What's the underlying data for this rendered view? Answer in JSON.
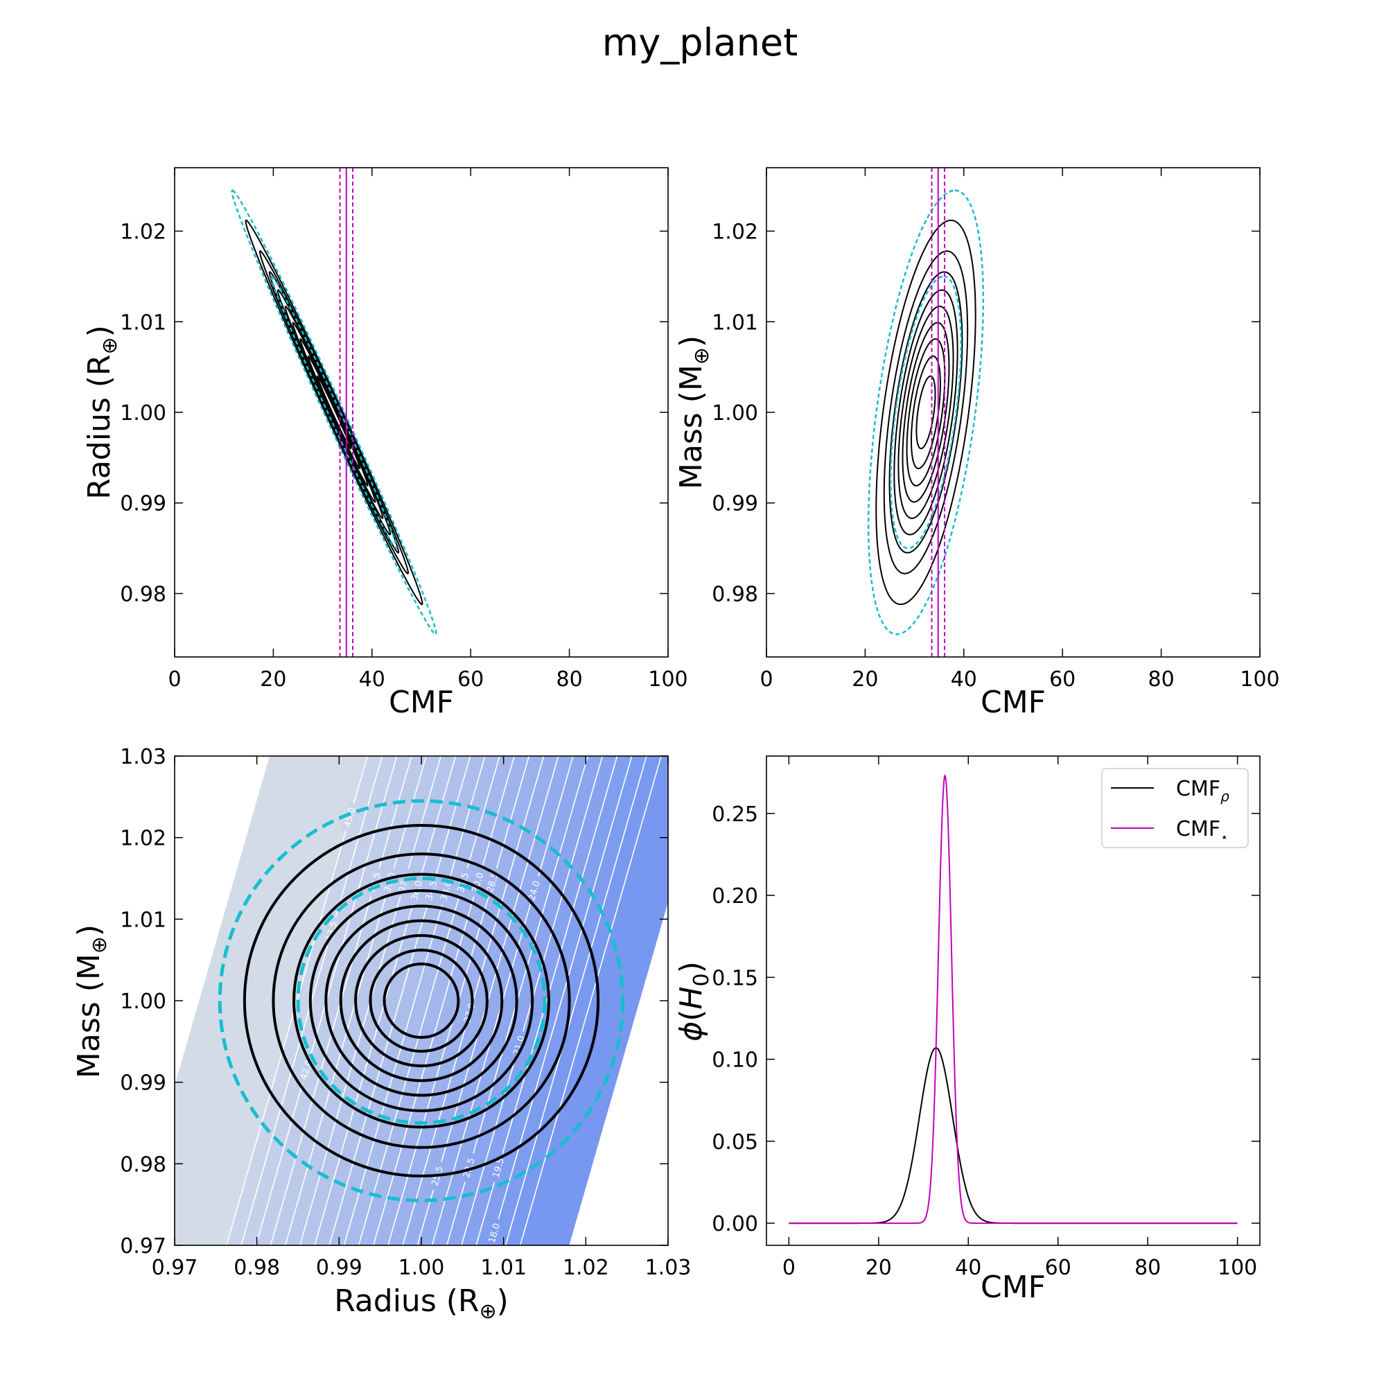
{
  "title": "my_planet",
  "colors": {
    "black": "#000000",
    "cyan": "#17becf",
    "magenta": "#bf00bf",
    "bg_light": "#d3dbe8",
    "bg_dark": "#7797f0",
    "contour_white": "#ffffff"
  },
  "chart_data": [
    {
      "id": "cmf_radius",
      "type": "contour",
      "xlabel": "CMF",
      "ylabel": "Radius (R⊕)",
      "xlim": [
        0,
        100
      ],
      "ylim": [
        0.973,
        1.027
      ],
      "xticks": [
        0,
        20,
        40,
        60,
        80,
        100
      ],
      "yticks": [
        0.98,
        0.99,
        1.0,
        1.01,
        1.02
      ],
      "ytick_labels": [
        "0.98",
        "0.99",
        "1.00",
        "1.01",
        "1.02"
      ],
      "ellipse_center": [
        32.3,
        1.0
      ],
      "black_contour_halfheights": [
        0.0212,
        0.0178,
        0.0155,
        0.0135,
        0.0117,
        0.0099,
        0.0081,
        0.0062,
        0.004
      ],
      "cyan_dashed_halfheights": [
        0.0245,
        0.015
      ],
      "slope_cmf_per_radius": -840,
      "width_ratio": 0.4,
      "vlines": [
        {
          "x": 33.5,
          "style": "dashed"
        },
        {
          "x": 34.8,
          "style": "solid"
        },
        {
          "x": 36.1,
          "style": "dashed"
        }
      ]
    },
    {
      "id": "cmf_mass",
      "type": "contour",
      "xlabel": "CMF",
      "ylabel": "Mass (M⊕)",
      "xlim": [
        0,
        100
      ],
      "ylim": [
        0.973,
        1.027
      ],
      "xticks": [
        0,
        20,
        40,
        60,
        80,
        100
      ],
      "yticks": [
        0.98,
        0.99,
        1.0,
        1.01,
        1.02
      ],
      "ytick_labels": [
        "0.98",
        "0.99",
        "1.00",
        "1.01",
        "1.02"
      ],
      "ellipse_center": [
        32.3,
        1.0
      ],
      "black_contour_halfheights": [
        0.0212,
        0.0178,
        0.0155,
        0.0135,
        0.0117,
        0.0099,
        0.0081,
        0.0062,
        0.004
      ],
      "cyan_dashed_halfheights": [
        0.0245,
        0.015
      ],
      "slope_cmf_per_mass": 240,
      "width_ratio": 0.38,
      "vlines": [
        {
          "x": 33.5,
          "style": "dashed"
        },
        {
          "x": 34.8,
          "style": "solid"
        },
        {
          "x": 36.1,
          "style": "dashed"
        }
      ]
    },
    {
      "id": "radius_mass",
      "type": "contour",
      "xlabel": "Radius (R⊕)",
      "ylabel": "Mass (M⊕)",
      "xlim": [
        0.97,
        1.03
      ],
      "ylim": [
        0.97,
        1.03
      ],
      "xticks": [
        0.97,
        0.98,
        0.99,
        1.0,
        1.01,
        1.02,
        1.03
      ],
      "xtick_labels": [
        "0.97",
        "0.98",
        "0.99",
        "1.00",
        "1.01",
        "1.02",
        "1.03"
      ],
      "yticks": [
        0.97,
        0.98,
        0.99,
        1.0,
        1.01,
        1.02,
        1.03
      ],
      "ytick_labels": [
        "0.97",
        "0.98",
        "0.99",
        "1.00",
        "1.01",
        "1.02",
        "1.03"
      ],
      "circle_center": [
        1.0,
        1.0
      ],
      "black_circle_radii": [
        0.0215,
        0.018,
        0.0155,
        0.0135,
        0.0116,
        0.0098,
        0.008,
        0.0062,
        0.0045
      ],
      "cyan_dashed_radii": [
        0.0245,
        0.015
      ],
      "cmf_levels": [
        15.0,
        16.5,
        18.0,
        19.5,
        21.0,
        22.5,
        24.0,
        25.5,
        27.0,
        28.5,
        30.0,
        31.5,
        33.0,
        34.5,
        36.0,
        37.5,
        39.0,
        40.5,
        42.0,
        43.5,
        45.0
      ],
      "cmf_level_labels": [
        "18.0",
        "19.5",
        "21.0",
        "22.5",
        "24.0",
        "25.5",
        "27.0",
        "28.5",
        "30.0",
        "31.5",
        "33.0",
        "34.5",
        "36.0",
        "37.5",
        "39.0",
        "40.5",
        "42.0",
        "43.5",
        "45.0"
      ],
      "cmf_model": {
        "at": [
          1.0,
          1.0
        ],
        "value": 32.3,
        "dCMF_dR": -840,
        "dCMF_dM": 240
      }
    },
    {
      "id": "cmf_pdf",
      "type": "line",
      "xlabel": "CMF",
      "ylabel": "φ(H₀)",
      "xlim": [
        -5,
        105
      ],
      "ylim": [
        -0.0135,
        0.285
      ],
      "xticks": [
        0,
        20,
        40,
        60,
        80,
        100
      ],
      "yticks": [
        0.0,
        0.05,
        0.1,
        0.15,
        0.2,
        0.25
      ],
      "ytick_labels": [
        "0.00",
        "0.05",
        "0.10",
        "0.15",
        "0.20",
        "0.25"
      ],
      "series": [
        {
          "name": "CMFρ",
          "color": "#000000",
          "mean": 32.8,
          "sigma": 3.7,
          "peak": 0.107,
          "x_range": [
            0,
            100
          ]
        },
        {
          "name": "CMF⋆",
          "color": "#bf00bf",
          "mean": 34.8,
          "sigma": 1.46,
          "peak": 0.273,
          "x_range": [
            0,
            100
          ]
        }
      ],
      "legend_loc": "upper right"
    }
  ]
}
